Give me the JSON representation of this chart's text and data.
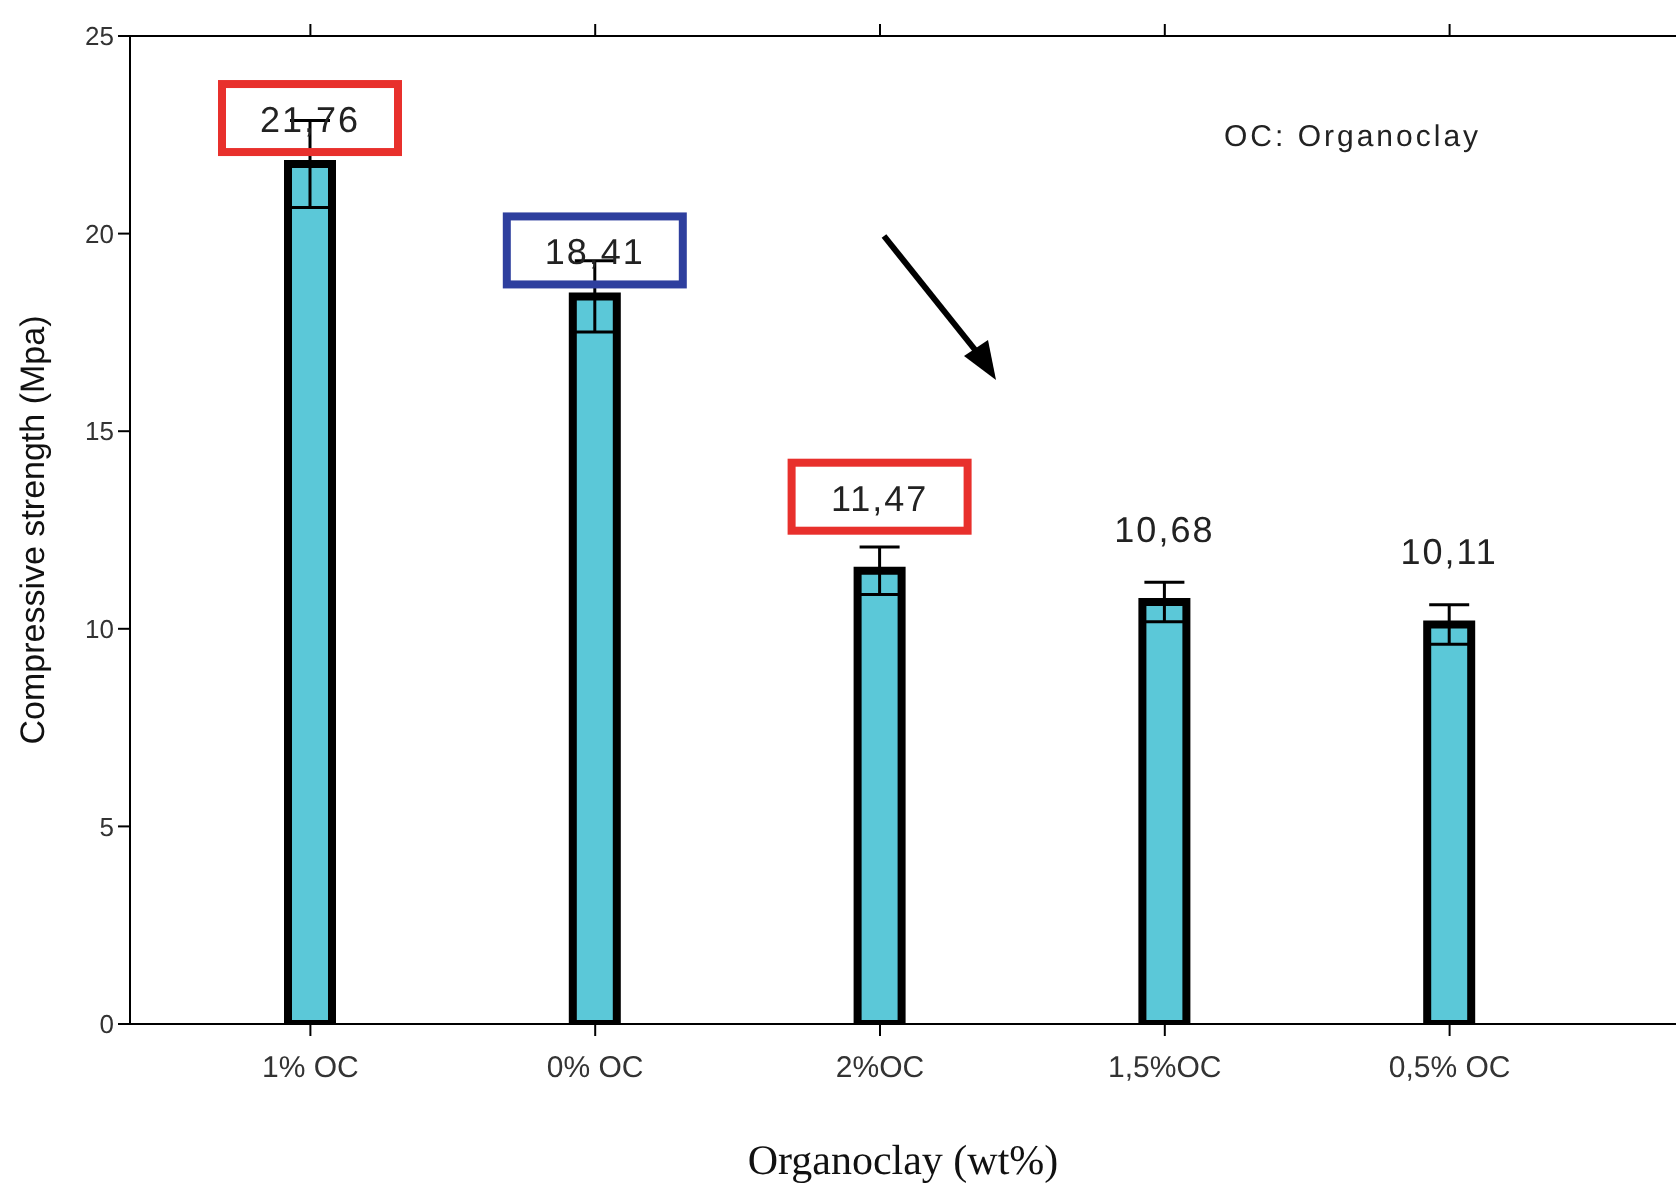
{
  "chart_data": {
    "type": "bar",
    "xlabel": "Organoclay (wt%)",
    "ylabel": "Compressive strength (Mpa)",
    "categories": [
      "1% OC",
      "0% OC",
      "2%OC",
      "1,5%OC",
      "0,5% OC"
    ],
    "values": [
      21.76,
      18.41,
      11.47,
      10.68,
      10.11
    ],
    "value_labels": [
      "21,76",
      "18,41",
      "11,47",
      "10,68",
      "10,11"
    ],
    "errors": [
      1.1,
      0.9,
      0.6,
      0.5,
      0.5
    ],
    "color": "#5bc8d8",
    "ylim": [
      0,
      25
    ],
    "yticks": [
      0,
      5,
      10,
      15,
      20,
      25
    ],
    "grid": false,
    "legend": false,
    "annotations": [
      "OC: Organoclay"
    ]
  }
}
